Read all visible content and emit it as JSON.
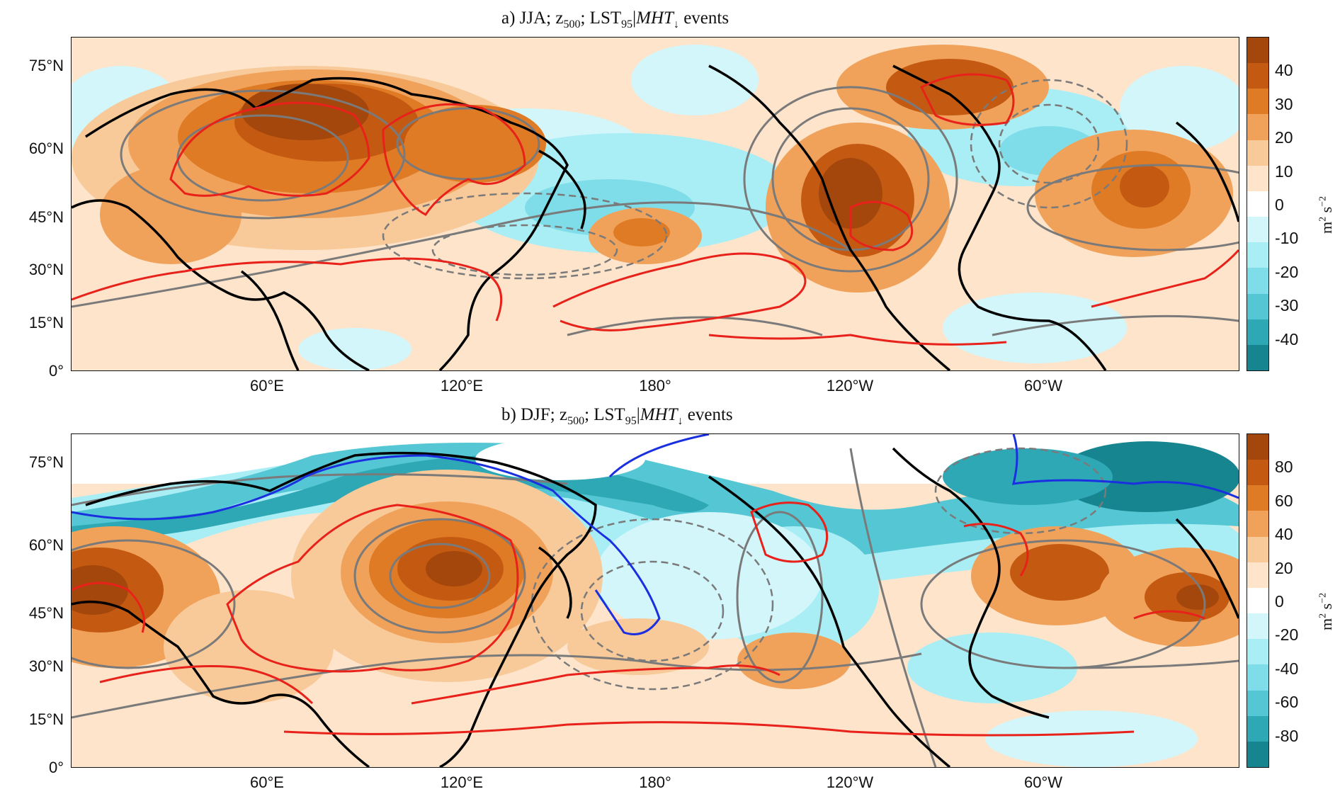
{
  "panels": [
    {
      "id": "a",
      "title_prefix": "a) JJA; z",
      "title_sub": "500",
      "title_mid": "; LST",
      "title_sub2": "95",
      "title_sep": "|",
      "title_italic": "MHT",
      "title_arrow": "↓",
      "title_suffix": " events",
      "lat_labels": [
        "75°N",
        "60°N",
        "45°N",
        "30°N",
        "15°N",
        "0°"
      ],
      "lon_labels": [
        "60°E",
        "120°E",
        "180°",
        "120°W",
        "60°W"
      ],
      "colorbar": {
        "ticks": [
          "40",
          "30",
          "20",
          "10",
          "0",
          "-10",
          "-20",
          "-30",
          "-40"
        ],
        "unit_base": "m",
        "unit_exp": "2",
        "unit_base2": " s",
        "unit_exp2": "−2",
        "colors_top_to_bottom": [
          "#a4470c",
          "#c45a12",
          "#e07b25",
          "#f0a25b",
          "#f8c999",
          "#fde4cb",
          "#ffffff",
          "#d3f6fa",
          "#a9eef5",
          "#7fdde9",
          "#55c6d3",
          "#2fa8b6",
          "#168590"
        ]
      }
    },
    {
      "id": "b",
      "title_prefix": "b) DJF; z",
      "title_sub": "500",
      "title_mid": "; LST",
      "title_sub2": "95",
      "title_sep": "|",
      "title_italic": "MHT",
      "title_arrow": "↓",
      "title_suffix": " events",
      "lat_labels": [
        "75°N",
        "60°N",
        "45°N",
        "30°N",
        "15°N",
        "0°"
      ],
      "lon_labels": [
        "60°E",
        "120°E",
        "180°",
        "120°W",
        "60°W"
      ],
      "colorbar": {
        "ticks": [
          "80",
          "60",
          "40",
          "20",
          "0",
          "-20",
          "-40",
          "-60",
          "-80"
        ],
        "unit_base": "m",
        "unit_exp": "2",
        "unit_base2": " s",
        "unit_exp2": "−2",
        "colors_top_to_bottom": [
          "#a4470c",
          "#c45a12",
          "#e07b25",
          "#f0a25b",
          "#f8c999",
          "#fde4cb",
          "#ffffff",
          "#d3f6fa",
          "#a9eef5",
          "#7fdde9",
          "#55c6d3",
          "#2fa8b6",
          "#168590"
        ]
      }
    }
  ],
  "contour_colors": {
    "anomaly_positive_outline": "#e8211a",
    "anomaly_negative_outline": "#1a2fe0",
    "z500_contour": "#7a7a7a",
    "coastline": "#000000"
  }
}
